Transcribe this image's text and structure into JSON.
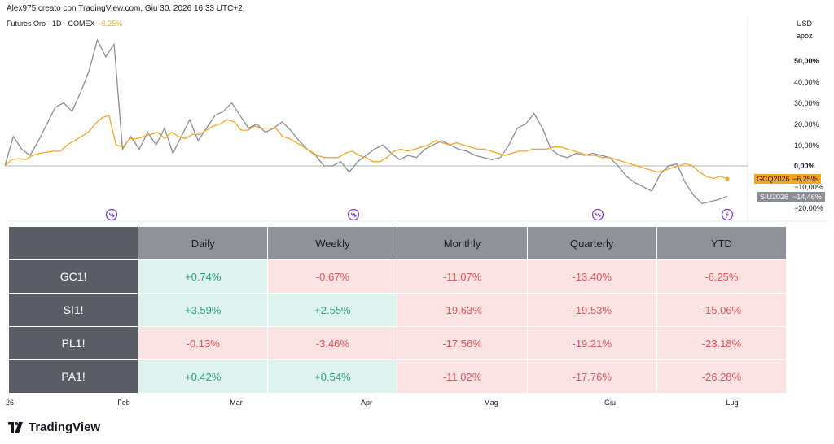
{
  "header": {
    "watermark": "Alex975 creato con TradingView.com, Giu 30, 2026 16:33 UTC+2",
    "symbol": "Futures Oro · 1D · COMEX",
    "symbol_change": "−6,25%"
  },
  "axis": {
    "currency": "USD",
    "mode": "apoz",
    "ticks": [
      "50,00%",
      "40,00%",
      "30,00%",
      "20,00%",
      "10,00%",
      "0,00%",
      "−10,00%",
      "−20,00%"
    ],
    "months": [
      "26",
      "Feb",
      "Mar",
      "Apr",
      "Mag",
      "Giu",
      "Lug"
    ]
  },
  "badges": {
    "gold": {
      "label": "GCQ2026",
      "value": "−6,25%",
      "color": "#f5a623"
    },
    "silver": {
      "label": "SIU2026",
      "value": "−14,46%",
      "color": "#7f8289"
    }
  },
  "chart_data": {
    "type": "line",
    "ylabel": "",
    "ylim": [
      -22,
      60
    ],
    "series": [
      {
        "name": "GCQ2026",
        "color": "#f5a623",
        "values": [
          0,
          3,
          3.5,
          3,
          5,
          6,
          6.5,
          7,
          7,
          10,
          12,
          14,
          16,
          20,
          23,
          24,
          10,
          9,
          13,
          13,
          14,
          15,
          16,
          13,
          16,
          14,
          13,
          15,
          15,
          17,
          19,
          20,
          22,
          21,
          17,
          17,
          19,
          18,
          18,
          18,
          14,
          13,
          11,
          9,
          7,
          5,
          4,
          4,
          4,
          6,
          7,
          5,
          4,
          2,
          2,
          4,
          7,
          8,
          7,
          8,
          9,
          10,
          12,
          11,
          10,
          11,
          10,
          9,
          8,
          8,
          7,
          6,
          5,
          6,
          7,
          7,
          8,
          8,
          8,
          9,
          9,
          8,
          7,
          6,
          5,
          5,
          4,
          4,
          3,
          2,
          1,
          0,
          -1,
          -2,
          -3,
          -2,
          -1,
          0,
          1,
          0,
          -3,
          -5,
          -6,
          -5,
          -6.25
        ]
      },
      {
        "name": "SIU2026",
        "color": "#8a8d94",
        "values": [
          0,
          14,
          8,
          5,
          12,
          20,
          28,
          30,
          26,
          35,
          45,
          60,
          52,
          58,
          8,
          14,
          8,
          16,
          10,
          18,
          6,
          14,
          22,
          12,
          18,
          24,
          26,
          30,
          24,
          18,
          20,
          16,
          18,
          21,
          17,
          12,
          8,
          5,
          0,
          0,
          2,
          -3,
          2,
          5,
          8,
          10,
          6,
          3,
          5,
          4,
          8,
          10,
          12,
          10,
          8,
          7,
          5,
          4,
          3,
          4,
          10,
          18,
          20,
          25,
          18,
          8,
          5,
          4,
          6,
          5,
          6,
          5,
          4,
          0,
          -5,
          -8,
          -10,
          -12,
          -4,
          0,
          1,
          -8,
          -14,
          -18,
          -17,
          -16,
          -14.46
        ]
      }
    ],
    "events": [
      "arrow",
      "arrow",
      "arrow",
      "bolt"
    ]
  },
  "table": {
    "columns": [
      "Daily",
      "Weekly",
      "Monthly",
      "Quarterly",
      "YTD"
    ],
    "rows": [
      {
        "name": "GC1!",
        "cells": [
          {
            "v": "+0.74%",
            "s": "pos"
          },
          {
            "v": "-0.67%",
            "s": "neg"
          },
          {
            "v": "-11.07%",
            "s": "neg"
          },
          {
            "v": "-13.40%",
            "s": "neg"
          },
          {
            "v": "-6.25%",
            "s": "neg"
          }
        ]
      },
      {
        "name": "SI1!",
        "cells": [
          {
            "v": "+3.59%",
            "s": "pos"
          },
          {
            "v": "+2.55%",
            "s": "pos"
          },
          {
            "v": "-19.63%",
            "s": "neg"
          },
          {
            "v": "-19.53%",
            "s": "neg"
          },
          {
            "v": "-15.06%",
            "s": "neg"
          }
        ]
      },
      {
        "name": "PL1!",
        "cells": [
          {
            "v": "-0.13%",
            "s": "neg"
          },
          {
            "v": "-3.46%",
            "s": "neg"
          },
          {
            "v": "-17.56%",
            "s": "neg"
          },
          {
            "v": "-19.21%",
            "s": "neg"
          },
          {
            "v": "-23.18%",
            "s": "neg"
          }
        ]
      },
      {
        "name": "PA1!",
        "cells": [
          {
            "v": "+0.42%",
            "s": "pos"
          },
          {
            "v": "+0.54%",
            "s": "pos"
          },
          {
            "v": "-11.02%",
            "s": "neg"
          },
          {
            "v": "-17.76%",
            "s": "neg"
          },
          {
            "v": "-26.28%",
            "s": "neg"
          }
        ]
      }
    ]
  },
  "brand": {
    "name": "TradingView"
  }
}
